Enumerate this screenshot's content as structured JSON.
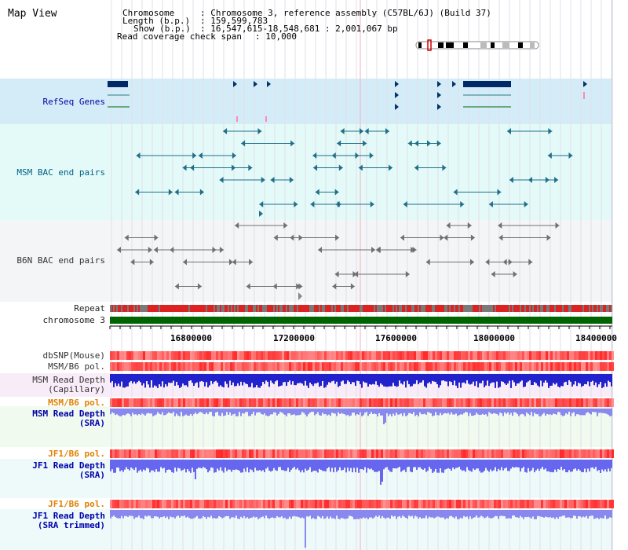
{
  "title": "Map View",
  "header": {
    "chromosome_label": "Chromosome",
    "chromosome_value": ": Chromosome 3, reference assembly (C57BL/6J) (Build 37)",
    "length_label": "Length (b.p.)",
    "length_value": ": 159,599,783",
    "show_label": "Show (b.p.)",
    "show_value": ": 16,547,615-18,548,681 : 2,001,067 bp",
    "coverage_label": "Read coverage check span",
    "coverage_value": ": 10,000"
  },
  "tracks": {
    "refseq": "RefSeq Genes",
    "msm_bac": "MSM BAC end pairs",
    "b6n_bac": "B6N BAC end pairs",
    "repeat": "Repeat",
    "chromosome": "chromosome 3",
    "dbsnp": "dbSNP(Mouse)",
    "msm_b6_pol": "MSM/B6 pol.",
    "msm_read_depth_cap_1": "MSM Read Depth",
    "msm_read_depth_cap_2": "(Capillary)",
    "msm_b6_pol_2": "MSM/B6 pol.",
    "msm_read_depth_sra_1": "MSM Read Depth",
    "msm_read_depth_sra_2": "(SRA)",
    "jf1_b6_pol": "JF1/B6 pol.",
    "jf1_read_depth_1": "JF1 Read Depth",
    "jf1_read_depth_2": "(SRA)",
    "jf1_b6_pol_2": "JF1/B6 pol.",
    "jf1_trim_1": "JF1 Read Depth",
    "jf1_trim_2": "(SRA trimmed)"
  },
  "axis": {
    "ticks": [
      "16800000",
      "17200000",
      "17600000",
      "18000000",
      "18400000"
    ]
  },
  "colors": {
    "refseq_bg": "#d4ecf8",
    "msm_bg": "#e4faf8",
    "b6n_bg": "#f2f6f8",
    "chrom_green": "#006400",
    "depth_blue": "#3333dd",
    "pol_red": "#f05050",
    "label_orange": "#e08000",
    "label_blue": "#0000aa"
  }
}
